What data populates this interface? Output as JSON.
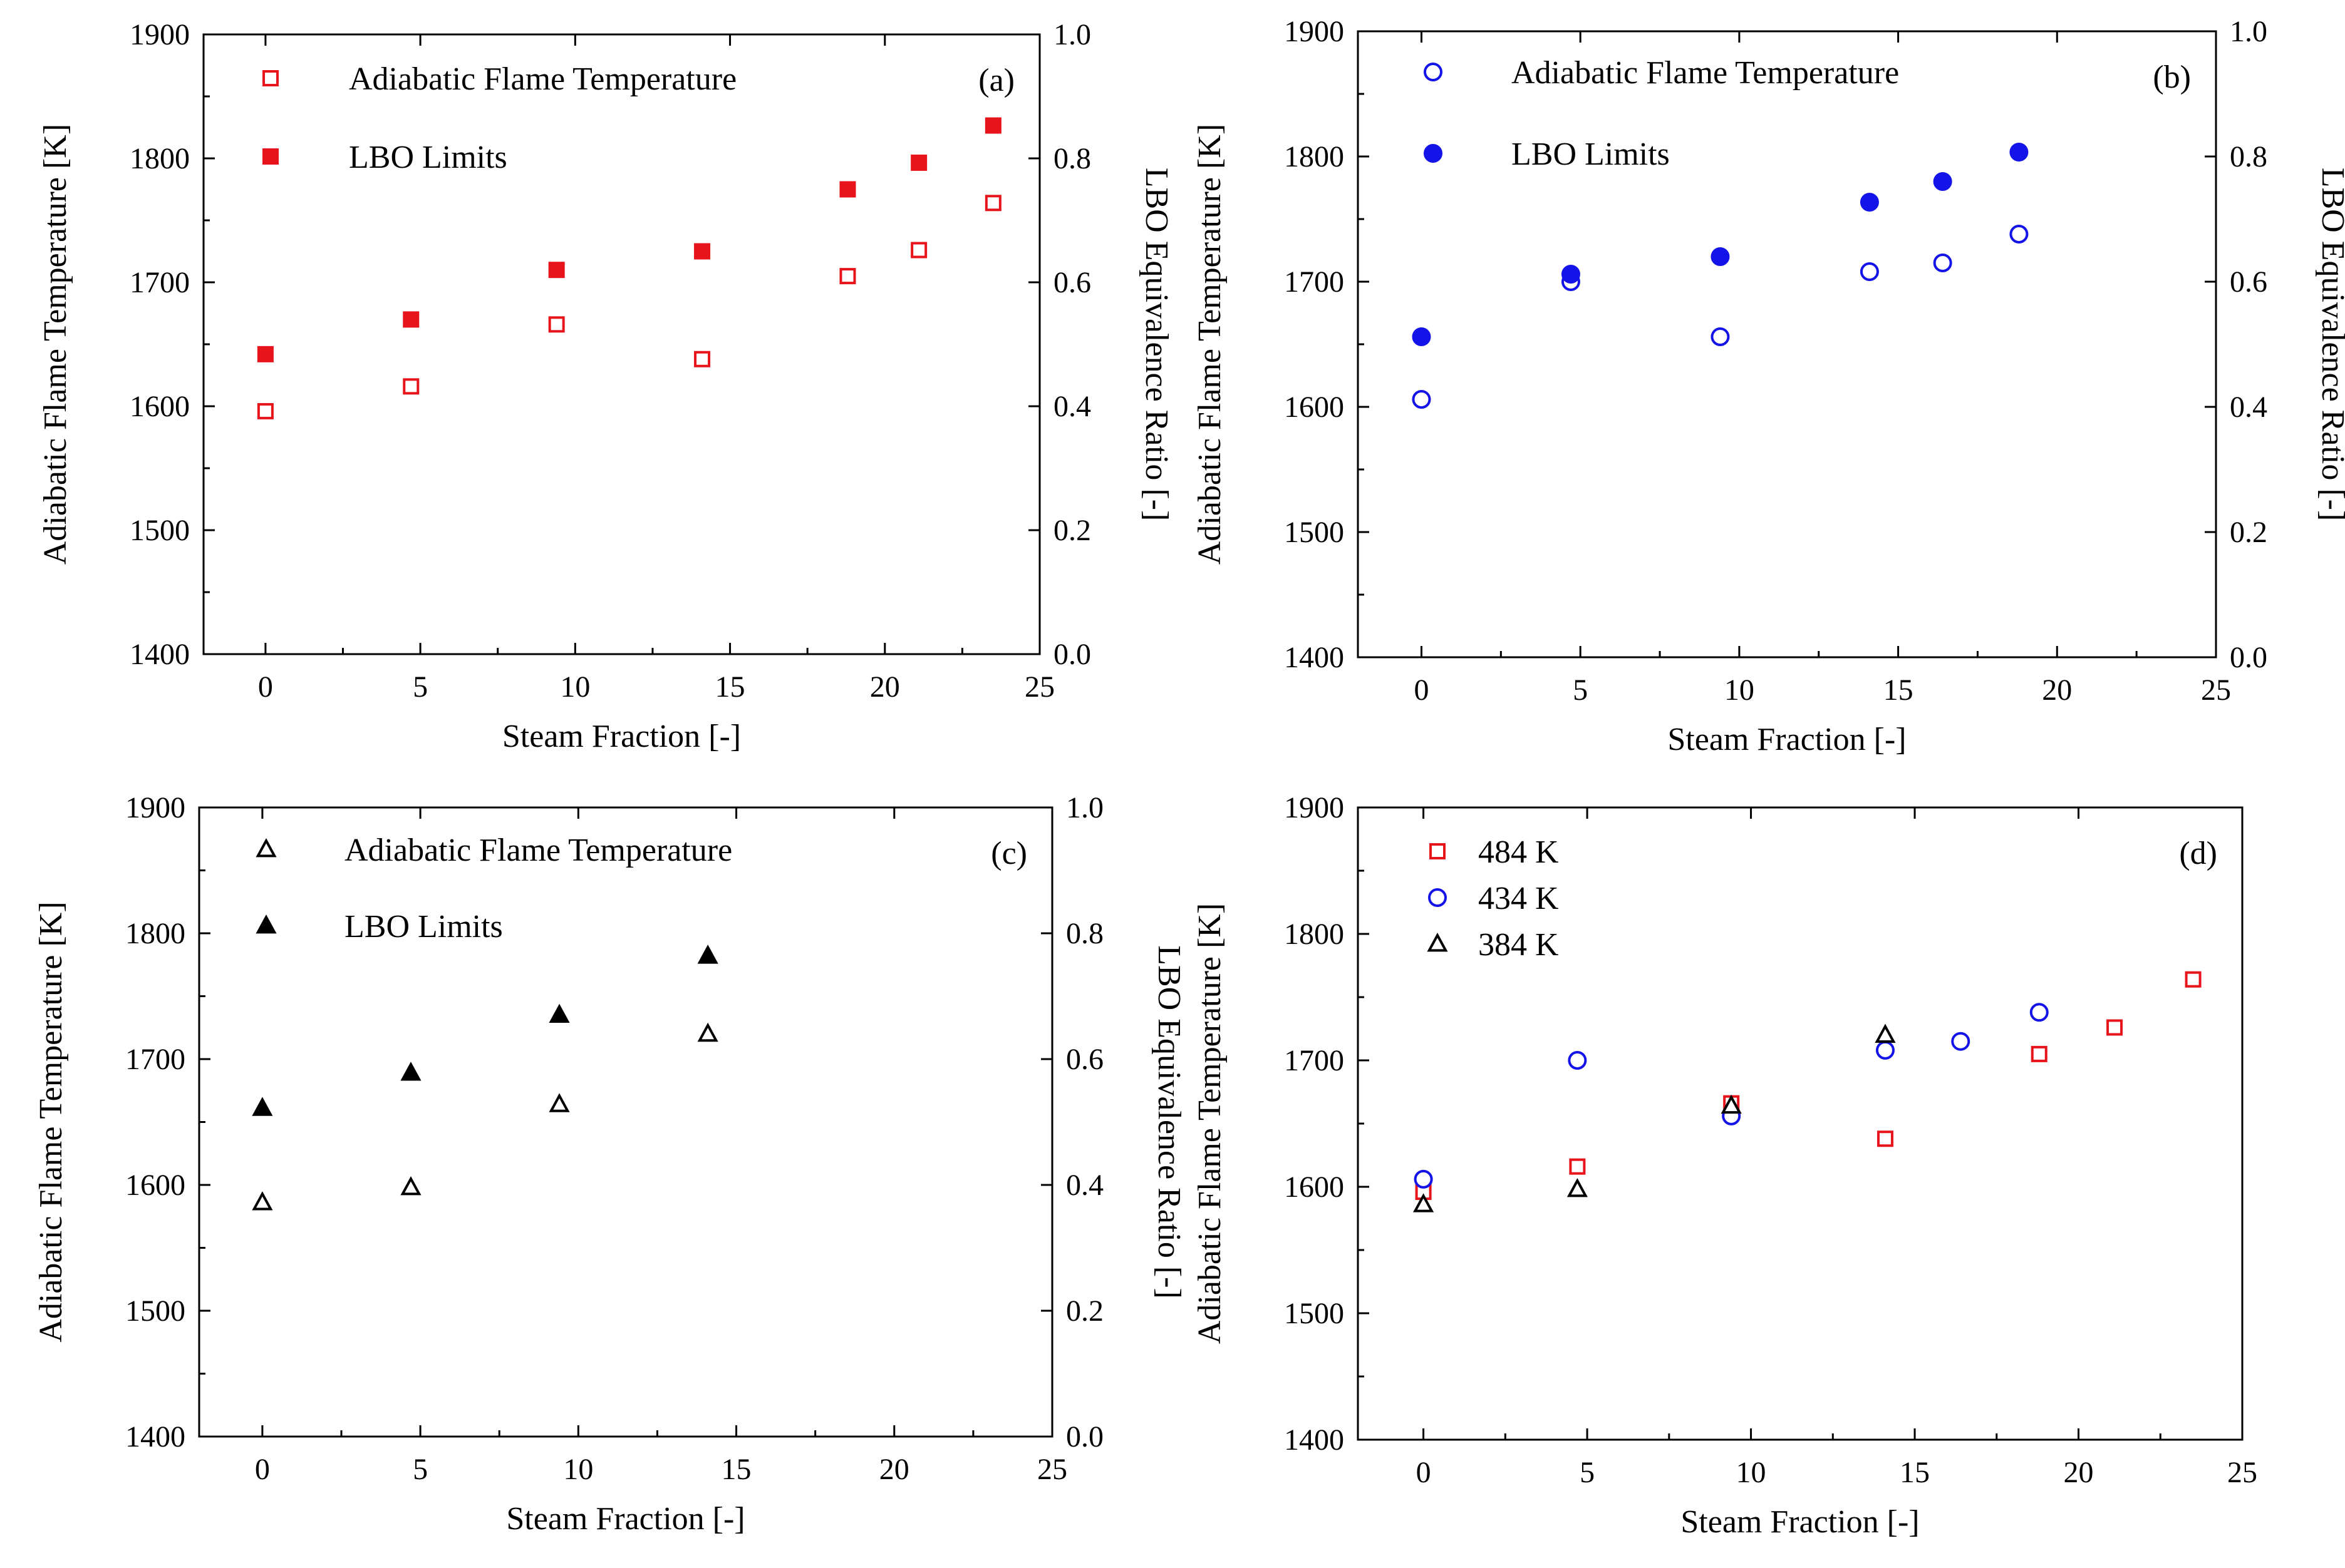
{
  "colors": {
    "red": "#e8141c",
    "blue": "#1414e8",
    "black": "#000000"
  },
  "chart_data": [
    {
      "type": "scatter",
      "panel_label": "(a)",
      "xlabel": "Steam Fraction [-]",
      "ylabel": "Adiabatic Flame Temperature [K]",
      "y2label": "LBO Equivalence Ratio [-]",
      "xlim": [
        -2,
        25
      ],
      "ylim": [
        1400,
        1900
      ],
      "y2lim": [
        0.0,
        1.0
      ],
      "xticks": [
        0,
        5,
        10,
        15,
        20,
        25
      ],
      "xtick_labels": [
        "0",
        "5",
        "10",
        "15",
        "20",
        "25"
      ],
      "yticks": [
        1400,
        1500,
        1600,
        1700,
        1800,
        1900
      ],
      "ytick_labels": [
        "1400",
        "1500",
        "1600",
        "1700",
        "1800",
        "1900"
      ],
      "y2ticks": [
        0.0,
        0.2,
        0.4,
        0.6,
        0.8,
        1.0
      ],
      "y2tick_labels": [
        "0.0",
        "0.2",
        "0.4",
        "0.6",
        "0.8",
        "1.0"
      ],
      "legend_position": "top-left",
      "series": [
        {
          "name": "Adiabatic Flame Temperature",
          "axis": "left",
          "marker": "square",
          "filled": false,
          "color": "#e8141c",
          "x": [
            0,
            4.7,
            9.4,
            14.1,
            18.8,
            21.1,
            23.5
          ],
          "y": [
            1596,
            1616,
            1666,
            1638,
            1705,
            1726,
            1764
          ]
        },
        {
          "name": "LBO Limits",
          "axis": "right",
          "marker": "square",
          "filled": true,
          "color": "#e8141c",
          "x": [
            0,
            4.7,
            9.4,
            14.1,
            18.8,
            21.1,
            23.5
          ],
          "y": [
            0.484,
            0.54,
            0.62,
            0.65,
            0.75,
            0.793,
            0.853
          ]
        }
      ]
    },
    {
      "type": "scatter",
      "panel_label": "(b)",
      "xlabel": "Steam Fraction [-]",
      "ylabel": "Adiabatic Flame Temperature [K]",
      "y2label": "LBO Equivalence Ratio [-]",
      "xlim": [
        -2,
        25
      ],
      "ylim": [
        1400,
        1900
      ],
      "y2lim": [
        0.0,
        1.0
      ],
      "xticks": [
        0,
        5,
        10,
        15,
        20,
        25
      ],
      "xtick_labels": [
        "0",
        "5",
        "10",
        "15",
        "20",
        "25"
      ],
      "yticks": [
        1400,
        1500,
        1600,
        1700,
        1800,
        1900
      ],
      "ytick_labels": [
        "1400",
        "1500",
        "1600",
        "1700",
        "1800",
        "1900"
      ],
      "y2ticks": [
        0.0,
        0.2,
        0.4,
        0.6,
        0.8,
        1.0
      ],
      "y2tick_labels": [
        "0.0",
        "0.2",
        "0.4",
        "0.6",
        "0.8",
        "1.0"
      ],
      "legend_position": "top-left",
      "series": [
        {
          "name": "Adiabatic Flame Temperature",
          "axis": "left",
          "marker": "circle",
          "filled": false,
          "color": "#1414e8",
          "x": [
            0,
            4.7,
            9.4,
            14.1,
            16.4,
            18.8
          ],
          "y": [
            1606,
            1700,
            1656,
            1708,
            1715,
            1738
          ]
        },
        {
          "name": "LBO Limits",
          "axis": "right",
          "marker": "circle",
          "filled": true,
          "color": "#1414e8",
          "x": [
            0,
            4.7,
            9.4,
            14.1,
            16.4,
            18.8
          ],
          "y": [
            0.512,
            0.612,
            0.64,
            0.727,
            0.76,
            0.807
          ]
        }
      ]
    },
    {
      "type": "scatter",
      "panel_label": "(c)",
      "xlabel": "Steam Fraction [-]",
      "ylabel": "Adiabatic Flame Temperature [K]",
      "y2label": "LBO Equivalence Ratio [-]",
      "xlim": [
        -2,
        25
      ],
      "ylim": [
        1400,
        1900
      ],
      "y2lim": [
        0.0,
        1.0
      ],
      "xticks": [
        0,
        5,
        10,
        15,
        20,
        25
      ],
      "xtick_labels": [
        "0",
        "5",
        "10",
        "15",
        "20",
        "25"
      ],
      "yticks": [
        1400,
        1500,
        1600,
        1700,
        1800,
        1900
      ],
      "ytick_labels": [
        "1400",
        "1500",
        "1600",
        "1700",
        "1800",
        "1900"
      ],
      "y2ticks": [
        0.0,
        0.2,
        0.4,
        0.6,
        0.8,
        1.0
      ],
      "y2tick_labels": [
        "0.0",
        "0.2",
        "0.4",
        "0.6",
        "0.8",
        "1.0"
      ],
      "legend_position": "top-left",
      "series": [
        {
          "name": "Adiabatic Flame Temperature",
          "axis": "left",
          "marker": "triangle",
          "filled": false,
          "color": "#000000",
          "x": [
            0,
            4.7,
            9.4,
            14.1
          ],
          "y": [
            1586,
            1598,
            1664,
            1720
          ]
        },
        {
          "name": "LBO Limits",
          "axis": "right",
          "marker": "triangle",
          "filled": true,
          "color": "#000000",
          "x": [
            0,
            4.7,
            9.4,
            14.1
          ],
          "y": [
            0.522,
            0.578,
            0.67,
            0.764
          ]
        }
      ]
    },
    {
      "type": "scatter",
      "panel_label": "(d)",
      "xlabel": "Steam Fraction [-]",
      "ylabel": "Adiabatic Flame Temperature [K]",
      "xlim": [
        -2,
        25
      ],
      "ylim": [
        1400,
        1900
      ],
      "xticks": [
        0,
        5,
        10,
        15,
        20,
        25
      ],
      "xtick_labels": [
        "0",
        "5",
        "10",
        "15",
        "20",
        "25"
      ],
      "yticks": [
        1400,
        1500,
        1600,
        1700,
        1800,
        1900
      ],
      "ytick_labels": [
        "1400",
        "1500",
        "1600",
        "1700",
        "1800",
        "1900"
      ],
      "legend_position": "top-left",
      "series": [
        {
          "name": "484 K",
          "axis": "left",
          "marker": "square",
          "filled": false,
          "color": "#e8141c",
          "x": [
            0,
            4.7,
            9.4,
            14.1,
            18.8,
            21.1,
            23.5
          ],
          "y": [
            1596,
            1616,
            1666,
            1638,
            1705,
            1726,
            1764
          ]
        },
        {
          "name": "434 K",
          "axis": "left",
          "marker": "circle",
          "filled": false,
          "color": "#1414e8",
          "x": [
            0,
            4.7,
            9.4,
            14.1,
            16.4,
            18.8
          ],
          "y": [
            1606,
            1700,
            1656,
            1708,
            1715,
            1738
          ]
        },
        {
          "name": "384 K",
          "axis": "left",
          "marker": "triangle",
          "filled": false,
          "color": "#000000",
          "x": [
            0,
            4.7,
            9.4,
            14.1
          ],
          "y": [
            1586,
            1598,
            1664,
            1720
          ]
        }
      ]
    }
  ]
}
